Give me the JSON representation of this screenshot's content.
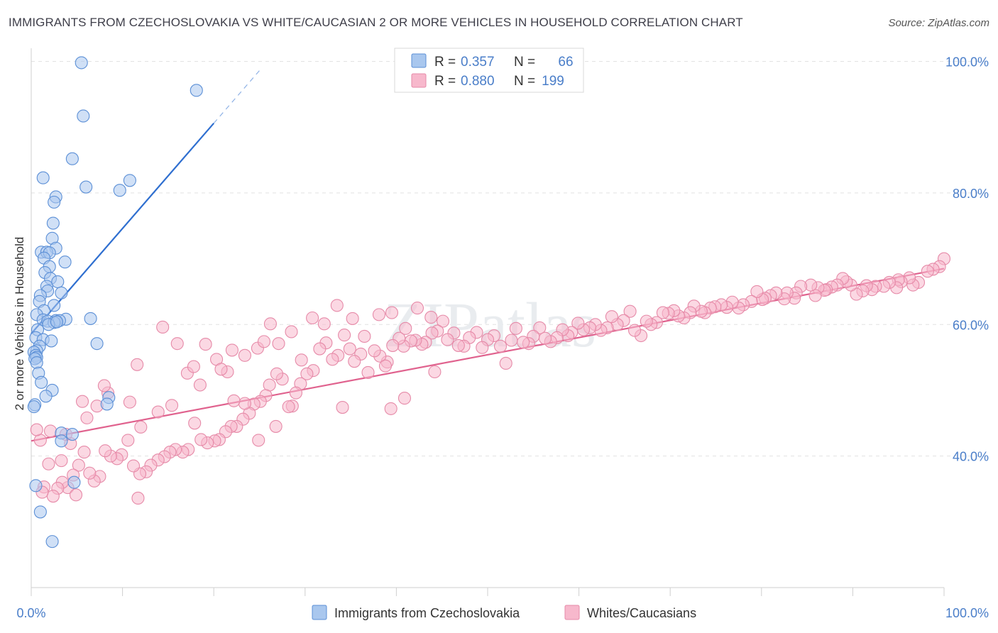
{
  "title": "IMMIGRANTS FROM CZECHOSLOVAKIA VS WHITE/CAUCASIAN 2 OR MORE VEHICLES IN HOUSEHOLD CORRELATION CHART",
  "source": "Source: ZipAtlas.com",
  "watermark": "ZIPatlas",
  "colors": {
    "blue_fill": "#a9c7ee",
    "blue_stroke": "#5b8fd6",
    "blue_line": "#2f6fd0",
    "pink_fill": "#f7b8cc",
    "pink_stroke": "#e68aa8",
    "pink_line": "#e0628e",
    "accent_text": "#4a7ec9"
  },
  "legend": {
    "r_label": "R =",
    "n_label": "N =",
    "blue": {
      "r": "0.357",
      "n": "66"
    },
    "pink": {
      "r": "0.880",
      "n": "199"
    }
  },
  "chart_data": {
    "type": "scatter",
    "title": "IMMIGRANTS FROM CZECHOSLOVAKIA VS WHITE/CAUCASIAN 2 OR MORE VEHICLES IN HOUSEHOLD CORRELATION CHART",
    "xlabel": "",
    "ylabel": "2 or more Vehicles in Household",
    "xlim": [
      0,
      100
    ],
    "ylim": [
      20,
      102
    ],
    "x_tick_labels": [
      "0.0%",
      "100.0%"
    ],
    "y_ticks": [
      40,
      60,
      80,
      100
    ],
    "y_tick_labels": [
      "40.0%",
      "60.0%",
      "80.0%",
      "100.0%"
    ],
    "grid": true,
    "legend_position": "top-center",
    "series": [
      {
        "name": "Immigrants from Czechoslovakia",
        "r": 0.357,
        "n": 66,
        "trend": {
          "x0": 0,
          "y0": 58.6,
          "x1": 20,
          "y1": 90.6,
          "dash_to_x": 25,
          "dash_to_y": 98.6
        },
        "points": [
          [
            5.5,
            99.8
          ],
          [
            18.1,
            95.6
          ],
          [
            5.7,
            91.7
          ],
          [
            4.5,
            85.2
          ],
          [
            1.3,
            82.3
          ],
          [
            10.8,
            81.9
          ],
          [
            6.0,
            80.9
          ],
          [
            9.7,
            80.4
          ],
          [
            2.7,
            79.4
          ],
          [
            2.5,
            78.6
          ],
          [
            2.4,
            75.4
          ],
          [
            2.3,
            73.1
          ],
          [
            2.7,
            71.6
          ],
          [
            1.1,
            71.0
          ],
          [
            1.7,
            71.0
          ],
          [
            2.0,
            70.9
          ],
          [
            1.4,
            70.1
          ],
          [
            3.7,
            69.5
          ],
          [
            2.0,
            68.8
          ],
          [
            1.5,
            67.9
          ],
          [
            2.1,
            67.0
          ],
          [
            2.9,
            66.5
          ],
          [
            1.7,
            65.8
          ],
          [
            1.8,
            65.1
          ],
          [
            3.3,
            64.8
          ],
          [
            1.0,
            64.4
          ],
          [
            0.9,
            63.5
          ],
          [
            2.5,
            62.9
          ],
          [
            1.4,
            62.1
          ],
          [
            0.6,
            61.5
          ],
          [
            6.5,
            60.9
          ],
          [
            3.8,
            60.8
          ],
          [
            1.3,
            60.7
          ],
          [
            1.8,
            60.5
          ],
          [
            2.7,
            60.6
          ],
          [
            3.1,
            60.6
          ],
          [
            2.5,
            60.3
          ],
          [
            1.9,
            60.0
          ],
          [
            2.8,
            60.4
          ],
          [
            0.7,
            59.2
          ],
          [
            0.5,
            58.0
          ],
          [
            1.3,
            57.7
          ],
          [
            2.2,
            57.5
          ],
          [
            7.2,
            57.1
          ],
          [
            0.9,
            56.7
          ],
          [
            0.6,
            56.0
          ],
          [
            0.3,
            55.8
          ],
          [
            0.5,
            55.3
          ],
          [
            0.6,
            55.0
          ],
          [
            0.4,
            54.8
          ],
          [
            0.6,
            54.2
          ],
          [
            0.8,
            52.6
          ],
          [
            1.1,
            51.2
          ],
          [
            2.3,
            50.0
          ],
          [
            1.6,
            49.1
          ],
          [
            8.5,
            48.9
          ],
          [
            8.3,
            47.9
          ],
          [
            0.4,
            47.8
          ],
          [
            0.3,
            47.5
          ],
          [
            3.3,
            43.5
          ],
          [
            4.5,
            43.3
          ],
          [
            3.3,
            42.3
          ],
          [
            4.7,
            36.0
          ],
          [
            1.0,
            31.5
          ],
          [
            2.3,
            27.0
          ],
          [
            0.5,
            35.5
          ]
        ]
      },
      {
        "name": "Whites/Caucasians",
        "r": 0.88,
        "n": 199,
        "trend": {
          "x0": 0,
          "y0": 42.3,
          "x1": 100,
          "y1": 68.5
        },
        "points": [
          [
            100.0,
            70.0
          ],
          [
            99.5,
            68.8
          ],
          [
            98.8,
            68.4
          ],
          [
            98.2,
            68.1
          ],
          [
            97.2,
            66.4
          ],
          [
            96.6,
            66.0
          ],
          [
            96.2,
            67.1
          ],
          [
            95.3,
            66.5
          ],
          [
            95.0,
            66.8
          ],
          [
            94.8,
            65.6
          ],
          [
            94.0,
            66.4
          ],
          [
            93.4,
            65.8
          ],
          [
            92.5,
            65.8
          ],
          [
            92.1,
            65.3
          ],
          [
            91.5,
            65.9
          ],
          [
            91.1,
            65.1
          ],
          [
            90.4,
            64.6
          ],
          [
            89.8,
            66.0
          ],
          [
            89.3,
            66.5
          ],
          [
            88.9,
            67.0
          ],
          [
            88.3,
            66.0
          ],
          [
            87.7,
            65.7
          ],
          [
            87.1,
            65.3
          ],
          [
            86.9,
            65.2
          ],
          [
            86.2,
            65.6
          ],
          [
            85.9,
            64.4
          ],
          [
            85.4,
            66.0
          ],
          [
            84.3,
            65.8
          ],
          [
            83.8,
            64.8
          ],
          [
            83.6,
            64.0
          ],
          [
            82.8,
            64.8
          ],
          [
            82.5,
            63.9
          ],
          [
            81.6,
            64.8
          ],
          [
            81.0,
            64.4
          ],
          [
            80.4,
            64.0
          ],
          [
            80.1,
            63.8
          ],
          [
            79.5,
            65.0
          ],
          [
            78.9,
            63.5
          ],
          [
            78.0,
            63.0
          ],
          [
            77.5,
            62.5
          ],
          [
            76.8,
            63.4
          ],
          [
            76.2,
            62.6
          ],
          [
            75.6,
            63.0
          ],
          [
            74.9,
            62.7
          ],
          [
            74.4,
            62.5
          ],
          [
            73.8,
            61.8
          ],
          [
            73.4,
            62.0
          ],
          [
            72.6,
            62.8
          ],
          [
            72.2,
            61.8
          ],
          [
            71.5,
            61.0
          ],
          [
            70.9,
            61.3
          ],
          [
            70.4,
            62.1
          ],
          [
            69.8,
            61.7
          ],
          [
            69.2,
            61.8
          ],
          [
            68.5,
            60.3
          ],
          [
            67.9,
            60.0
          ],
          [
            67.4,
            60.5
          ],
          [
            66.8,
            58.3
          ],
          [
            66.1,
            59.1
          ],
          [
            65.6,
            62.0
          ],
          [
            64.9,
            60.6
          ],
          [
            64.2,
            60.0
          ],
          [
            63.6,
            61.2
          ],
          [
            63.1,
            59.5
          ],
          [
            62.4,
            59.1
          ],
          [
            61.8,
            60.0
          ],
          [
            61.2,
            59.5
          ],
          [
            60.5,
            59.2
          ],
          [
            59.9,
            60.2
          ],
          [
            59.2,
            58.8
          ],
          [
            58.8,
            58.3
          ],
          [
            58.2,
            59.2
          ],
          [
            57.6,
            58.0
          ],
          [
            56.9,
            57.4
          ],
          [
            56.3,
            57.9
          ],
          [
            55.7,
            59.5
          ],
          [
            55.0,
            58.2
          ],
          [
            54.5,
            57.1
          ],
          [
            53.9,
            57.3
          ],
          [
            53.1,
            59.4
          ],
          [
            52.6,
            57.6
          ],
          [
            52.0,
            54.1
          ],
          [
            51.4,
            56.7
          ],
          [
            50.7,
            58.3
          ],
          [
            50.0,
            57.7
          ],
          [
            49.4,
            56.5
          ],
          [
            48.8,
            58.8
          ],
          [
            48.0,
            58.0
          ],
          [
            47.4,
            56.7
          ],
          [
            46.8,
            56.8
          ],
          [
            46.3,
            58.7
          ],
          [
            45.6,
            57.7
          ],
          [
            45.1,
            60.5
          ],
          [
            44.5,
            59.0
          ],
          [
            43.9,
            58.7
          ],
          [
            43.2,
            57.3
          ],
          [
            42.8,
            57.0
          ],
          [
            42.1,
            57.6
          ],
          [
            41.6,
            57.5
          ],
          [
            40.8,
            56.7
          ],
          [
            40.3,
            57.9
          ],
          [
            39.6,
            56.8
          ],
          [
            39.0,
            54.3
          ],
          [
            38.2,
            55.2
          ],
          [
            37.6,
            56.0
          ],
          [
            36.9,
            52.7
          ],
          [
            36.1,
            55.5
          ],
          [
            35.4,
            54.4
          ],
          [
            34.9,
            56.3
          ],
          [
            34.3,
            58.4
          ],
          [
            33.6,
            55.3
          ],
          [
            33.0,
            54.7
          ],
          [
            32.3,
            57.2
          ],
          [
            31.6,
            56.3
          ],
          [
            30.9,
            53.0
          ],
          [
            30.2,
            52.5
          ],
          [
            29.5,
            51.0
          ],
          [
            29.0,
            49.6
          ],
          [
            28.6,
            47.6
          ],
          [
            28.2,
            47.5
          ],
          [
            27.5,
            51.7
          ],
          [
            26.9,
            52.5
          ],
          [
            26.1,
            50.8
          ],
          [
            25.7,
            49.2
          ],
          [
            25.1,
            48.3
          ],
          [
            24.4,
            47.9
          ],
          [
            23.9,
            46.5
          ],
          [
            23.2,
            45.6
          ],
          [
            22.5,
            44.5
          ],
          [
            21.9,
            44.5
          ],
          [
            21.3,
            43.7
          ],
          [
            20.6,
            42.5
          ],
          [
            20.1,
            42.3
          ],
          [
            19.3,
            42.0
          ],
          [
            18.6,
            42.5
          ],
          [
            17.9,
            45.0
          ],
          [
            17.2,
            41.0
          ],
          [
            16.6,
            40.6
          ],
          [
            15.8,
            41.0
          ],
          [
            15.2,
            40.6
          ],
          [
            14.6,
            39.9
          ],
          [
            13.9,
            39.4
          ],
          [
            13.1,
            38.6
          ],
          [
            12.6,
            37.6
          ],
          [
            11.9,
            37.3
          ],
          [
            11.2,
            38.5
          ],
          [
            10.6,
            42.4
          ],
          [
            9.9,
            40.2
          ],
          [
            9.4,
            39.6
          ],
          [
            8.7,
            40.0
          ],
          [
            8.1,
            40.8
          ],
          [
            7.5,
            36.9
          ],
          [
            6.9,
            36.2
          ],
          [
            6.4,
            37.4
          ],
          [
            5.8,
            40.6
          ],
          [
            5.2,
            38.6
          ],
          [
            4.6,
            37.1
          ],
          [
            4.0,
            35.2
          ],
          [
            3.4,
            36.0
          ],
          [
            2.9,
            35.1
          ],
          [
            2.4,
            33.9
          ],
          [
            1.9,
            38.8
          ],
          [
            1.4,
            35.3
          ],
          [
            1.0,
            42.4
          ],
          [
            0.6,
            44.0
          ],
          [
            5.6,
            48.3
          ],
          [
            7.2,
            47.6
          ],
          [
            8.4,
            49.6
          ],
          [
            10.8,
            48.2
          ],
          [
            12.0,
            44.4
          ],
          [
            13.9,
            46.7
          ],
          [
            15.4,
            47.7
          ],
          [
            17.1,
            52.6
          ],
          [
            18.5,
            50.8
          ],
          [
            20.3,
            54.7
          ],
          [
            21.5,
            52.8
          ],
          [
            22.0,
            56.1
          ],
          [
            23.4,
            55.3
          ],
          [
            24.8,
            56.4
          ],
          [
            25.5,
            57.4
          ],
          [
            26.2,
            60.1
          ],
          [
            27.1,
            57.1
          ],
          [
            28.5,
            58.9
          ],
          [
            29.6,
            54.6
          ],
          [
            30.8,
            61.0
          ],
          [
            32.1,
            60.1
          ],
          [
            33.5,
            62.9
          ],
          [
            35.2,
            60.9
          ],
          [
            36.5,
            58.2
          ],
          [
            38.1,
            61.5
          ],
          [
            39.5,
            61.8
          ],
          [
            41.0,
            59.4
          ],
          [
            42.3,
            62.5
          ],
          [
            43.8,
            61.1
          ],
          [
            44.2,
            52.8
          ],
          [
            40.9,
            48.8
          ],
          [
            39.4,
            47.2
          ],
          [
            38.8,
            53.7
          ],
          [
            34.1,
            47.4
          ],
          [
            26.8,
            44.5
          ],
          [
            24.9,
            42.4
          ],
          [
            23.4,
            48.0
          ],
          [
            22.2,
            48.4
          ],
          [
            20.8,
            53.2
          ],
          [
            19.1,
            57.0
          ],
          [
            17.8,
            53.6
          ],
          [
            16.0,
            57.1
          ],
          [
            14.4,
            59.6
          ],
          [
            11.6,
            53.9
          ],
          [
            8.0,
            50.7
          ],
          [
            6.1,
            45.8
          ],
          [
            4.3,
            41.9
          ],
          [
            3.3,
            39.3
          ],
          [
            2.1,
            43.8
          ],
          [
            1.2,
            34.5
          ],
          [
            3.8,
            43.3
          ],
          [
            11.7,
            33.6
          ],
          [
            4.9,
            34.1
          ]
        ]
      }
    ]
  }
}
